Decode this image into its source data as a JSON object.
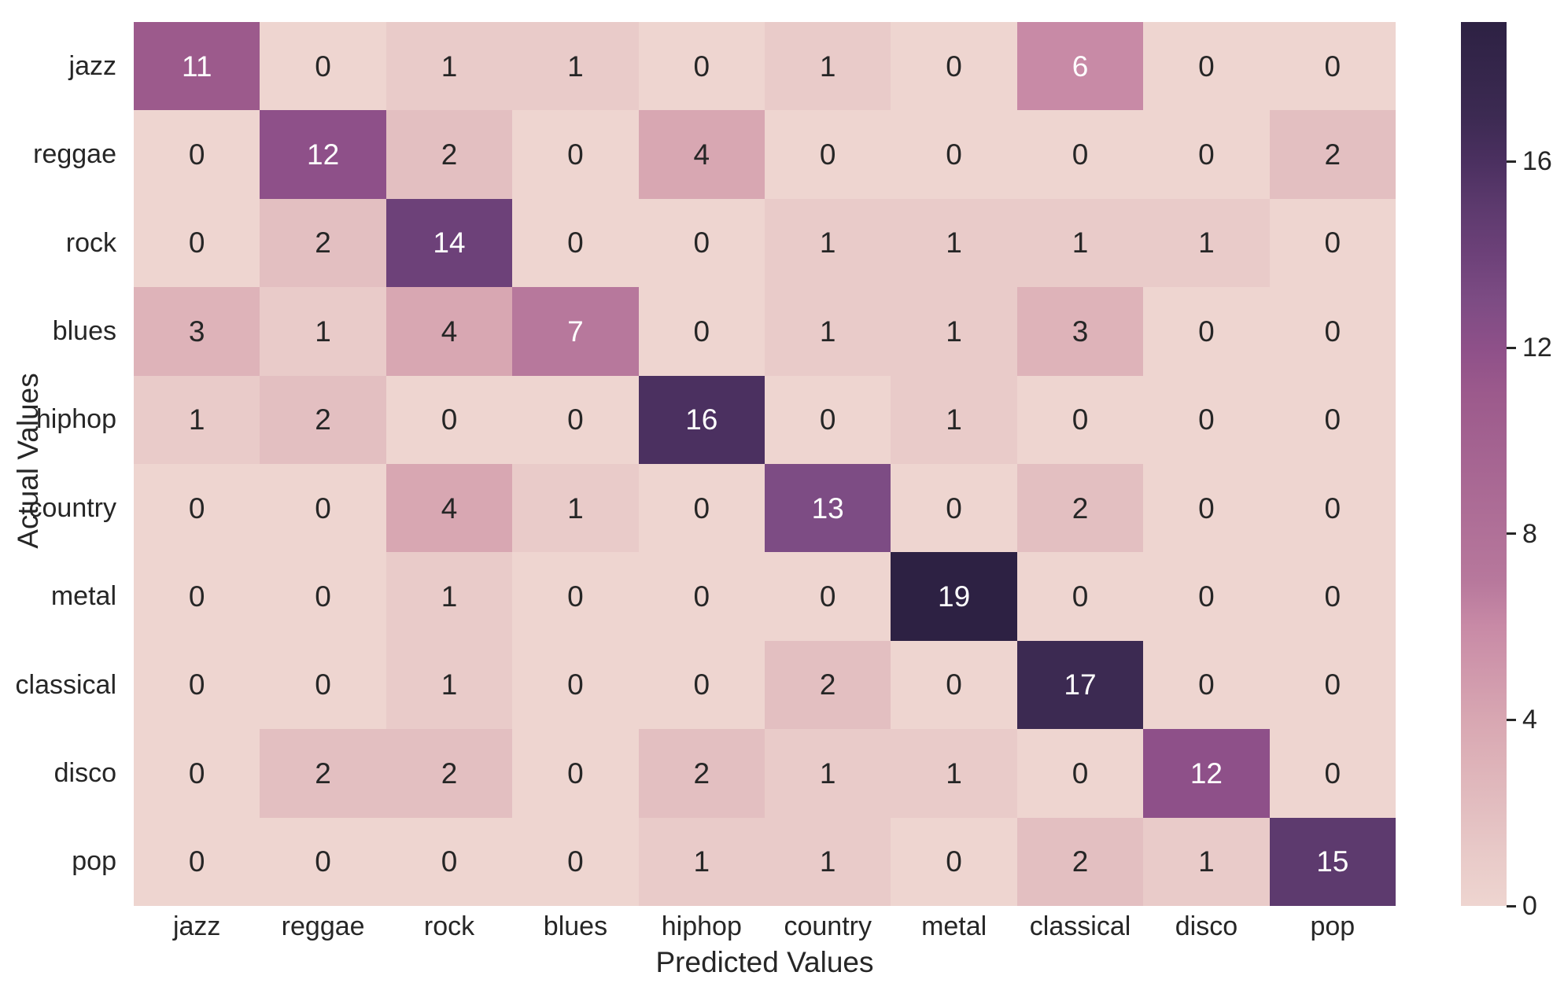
{
  "figure": {
    "background": "#ffffff",
    "text_color": "#262626"
  },
  "chart_data": {
    "type": "heatmap",
    "title": "",
    "xlabel": "Predicted Values",
    "ylabel": "Actual Values",
    "x_categories": [
      "jazz",
      "reggae",
      "rock",
      "blues",
      "hiphop",
      "country",
      "metal",
      "classical",
      "disco",
      "pop"
    ],
    "y_categories": [
      "jazz",
      "reggae",
      "rock",
      "blues",
      "hiphop",
      "country",
      "metal",
      "classical",
      "disco",
      "pop"
    ],
    "matrix": [
      [
        11,
        0,
        1,
        1,
        0,
        1,
        0,
        6,
        0,
        0
      ],
      [
        0,
        12,
        2,
        0,
        4,
        0,
        0,
        0,
        0,
        2
      ],
      [
        0,
        2,
        14,
        0,
        0,
        1,
        1,
        1,
        1,
        0
      ],
      [
        3,
        1,
        4,
        7,
        0,
        1,
        1,
        3,
        0,
        0
      ],
      [
        1,
        2,
        0,
        0,
        16,
        0,
        1,
        0,
        0,
        0
      ],
      [
        0,
        0,
        4,
        1,
        0,
        13,
        0,
        2,
        0,
        0
      ],
      [
        0,
        0,
        1,
        0,
        0,
        0,
        19,
        0,
        0,
        0
      ],
      [
        0,
        0,
        1,
        0,
        0,
        2,
        0,
        17,
        0,
        0
      ],
      [
        0,
        2,
        2,
        0,
        2,
        1,
        1,
        0,
        12,
        0
      ],
      [
        0,
        0,
        0,
        0,
        1,
        1,
        0,
        2,
        1,
        15
      ]
    ],
    "vmin": 0,
    "vmax": 19,
    "grid": false,
    "legend": false,
    "colorbar": {
      "position": "right",
      "ticks": [
        16,
        12,
        8,
        4,
        0
      ]
    },
    "colormap_stops": [
      [
        0,
        "#eed5d0"
      ],
      [
        1,
        "#e9cbc9"
      ],
      [
        2,
        "#e3bfc1"
      ],
      [
        3,
        "#deb3b9"
      ],
      [
        4,
        "#d8a7b2"
      ],
      [
        6,
        "#c88aa6"
      ],
      [
        7,
        "#b7789c"
      ],
      [
        11,
        "#9c5a8c"
      ],
      [
        12,
        "#8e5089"
      ],
      [
        13,
        "#7d4c84"
      ],
      [
        14,
        "#6d4179"
      ],
      [
        15,
        "#5d3a6e"
      ],
      [
        16,
        "#4b3060"
      ],
      [
        17,
        "#3c2a52"
      ],
      [
        19,
        "#2d2143"
      ]
    ],
    "annotation_colors": {
      "on_dark": "#ffffff",
      "on_light": "#262626"
    }
  }
}
